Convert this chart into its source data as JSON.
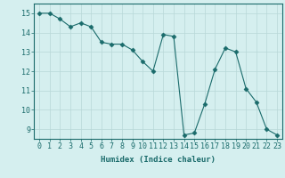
{
  "x": [
    0,
    1,
    2,
    3,
    4,
    5,
    6,
    7,
    8,
    9,
    10,
    11,
    12,
    13,
    14,
    15,
    16,
    17,
    18,
    19,
    20,
    21,
    22,
    23
  ],
  "y": [
    15.0,
    15.0,
    14.7,
    14.3,
    14.5,
    14.3,
    13.5,
    13.4,
    13.4,
    13.1,
    12.5,
    12.0,
    13.9,
    13.8,
    8.7,
    8.8,
    10.3,
    12.1,
    13.2,
    13.0,
    11.1,
    10.4,
    9.0,
    8.7
  ],
  "xlabel": "Humidex (Indice chaleur)",
  "xlim": [
    -0.5,
    23.5
  ],
  "ylim": [
    8.5,
    15.5
  ],
  "yticks": [
    9,
    10,
    11,
    12,
    13,
    14,
    15
  ],
  "xticks": [
    0,
    1,
    2,
    3,
    4,
    5,
    6,
    7,
    8,
    9,
    10,
    11,
    12,
    13,
    14,
    15,
    16,
    17,
    18,
    19,
    20,
    21,
    22,
    23
  ],
  "line_color": "#1a6b6b",
  "marker": "D",
  "marker_size": 2.5,
  "background_color": "#d5efef",
  "grid_color": "#b8d8d8",
  "label_fontsize": 6.5,
  "tick_fontsize": 6
}
